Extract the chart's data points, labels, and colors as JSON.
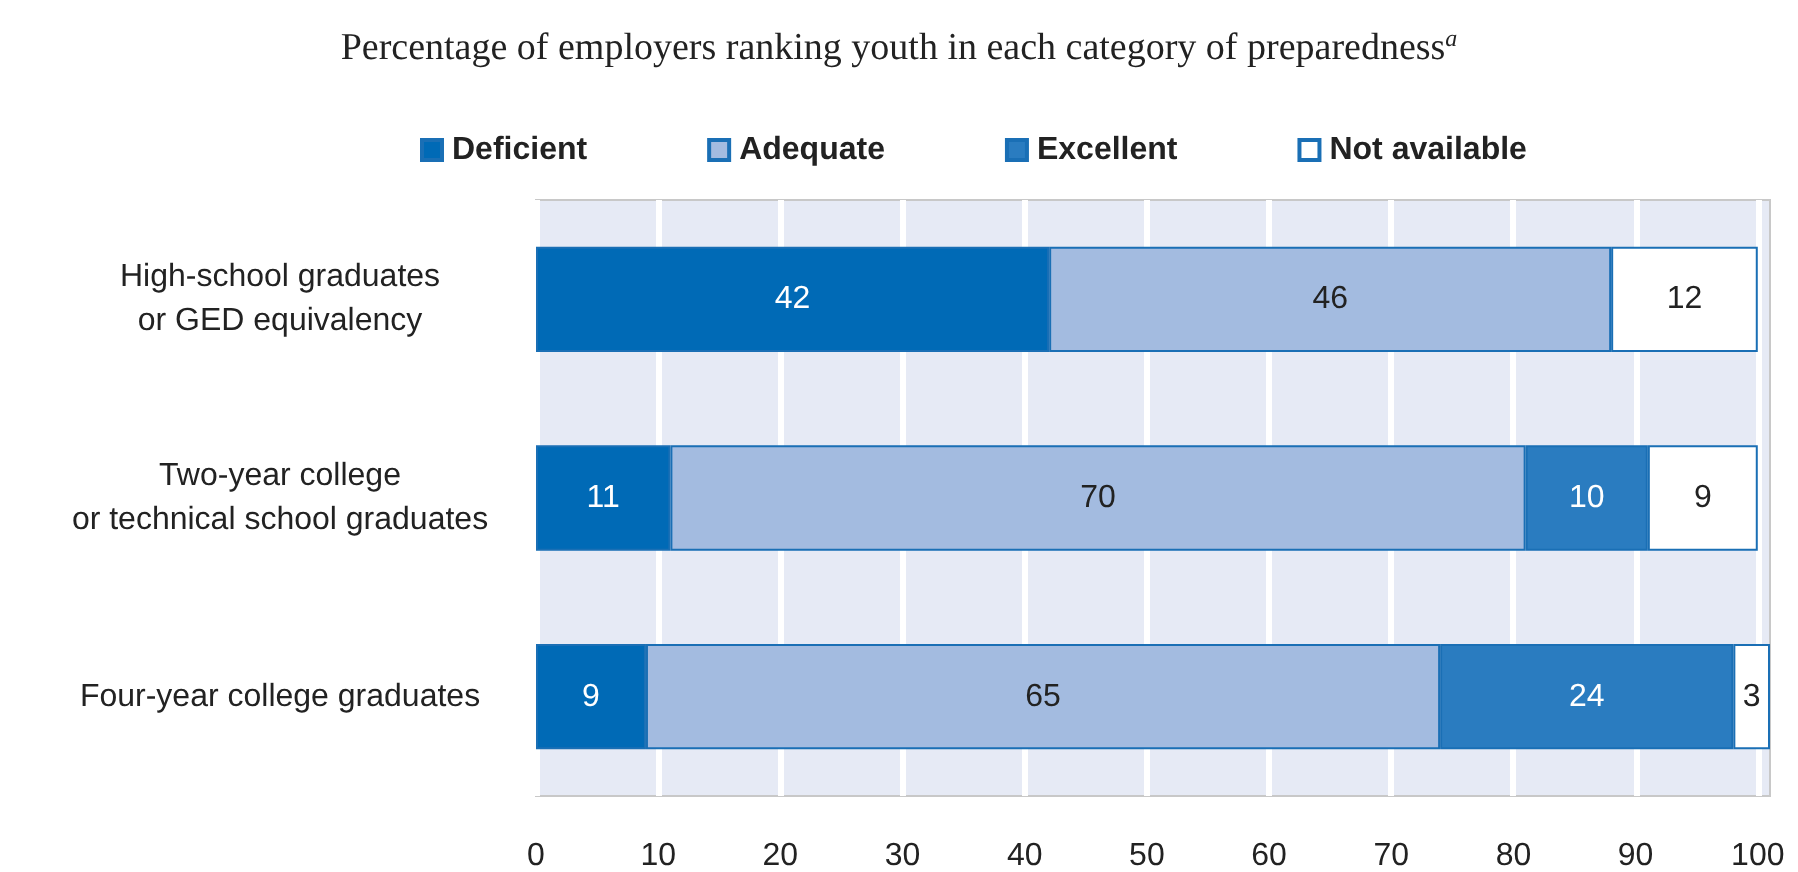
{
  "chart_data": {
    "type": "bar",
    "orientation": "horizontal",
    "stacked": true,
    "title": "Percentage of employers ranking youth in each category of preparedness$^{a}$",
    "categories": [
      "High-school graduates\nor GED equivalency",
      "Two-year college\nor technical school graduates",
      "Four-year college graduates"
    ],
    "series": [
      {
        "name": "Deficient",
        "color": "#006ab6",
        "values": [
          42,
          11,
          9
        ]
      },
      {
        "name": "Adequate",
        "color": "#a3bbe0",
        "values": [
          46,
          70,
          65
        ]
      },
      {
        "name": "Excellent",
        "color": "#2a7cc0",
        "values": [
          null,
          10,
          24
        ]
      },
      {
        "name": "Not available",
        "color": "#ffffff",
        "values": [
          12,
          9,
          3
        ]
      }
    ],
    "xlim": [
      0,
      101
    ],
    "xticks": [
      0,
      10,
      20,
      30,
      40,
      50,
      60,
      70,
      80,
      90,
      100
    ],
    "grid": "x",
    "legend": "top",
    "data_labels": true
  }
}
